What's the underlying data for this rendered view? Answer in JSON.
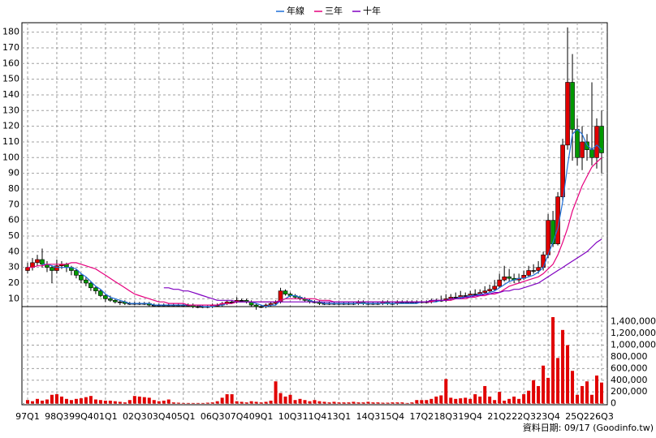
{
  "chart_data": {
    "type": "candlestick",
    "categories": [
      "97Q1",
      null,
      null,
      null,
      null,
      null,
      "98Q3",
      null,
      null,
      null,
      null,
      "99Q4",
      null,
      null,
      null,
      null,
      "01Q1",
      null,
      null,
      null,
      null,
      null,
      "02Q3",
      null,
      null,
      null,
      null,
      "03Q4",
      null,
      null,
      null,
      null,
      "05Q1",
      null,
      null,
      null,
      null,
      null,
      "06Q3",
      null,
      null,
      null,
      null,
      "07Q4",
      null,
      null,
      null,
      null,
      "09Q1",
      null,
      null,
      null,
      null,
      null,
      "10Q3",
      null,
      null,
      null,
      null,
      "11Q4",
      null,
      null,
      null,
      null,
      "13Q1",
      null,
      null,
      null,
      null,
      null,
      "14Q3",
      null,
      null,
      null,
      null,
      "15Q4",
      null,
      null,
      null,
      null,
      null,
      "17Q2",
      null,
      null,
      null,
      null,
      "18Q3",
      null,
      null,
      null,
      null,
      "19Q4",
      null,
      null,
      null,
      null,
      null,
      "21Q2",
      null,
      null,
      null,
      null,
      "22Q3",
      null,
      null,
      null,
      null,
      "23Q4",
      null,
      null,
      null,
      null,
      null,
      "25Q2",
      null,
      null,
      null,
      null,
      "26Q3"
    ],
    "open": [
      28,
      30,
      33,
      35,
      32,
      30,
      28,
      31,
      32,
      30,
      28,
      25,
      22,
      20,
      17,
      15,
      12,
      10,
      9,
      8,
      8,
      7,
      7,
      7,
      7,
      7,
      6,
      6,
      6,
      6,
      6,
      6,
      6,
      6,
      6,
      5,
      5,
      5,
      5,
      6,
      6,
      7,
      8,
      8,
      9,
      9,
      8,
      6,
      5,
      5,
      6,
      7,
      8,
      15,
      13,
      12,
      11,
      10,
      9,
      8,
      8,
      7,
      7,
      7,
      7,
      7,
      7,
      7,
      7,
      8,
      7,
      7,
      7,
      7,
      8,
      7,
      7,
      8,
      8,
      8,
      8,
      8,
      8,
      8,
      9,
      9,
      9,
      10,
      11,
      11,
      12,
      12,
      13,
      13,
      14,
      15,
      16,
      18,
      22,
      24,
      23,
      22,
      23,
      25,
      28,
      28,
      30,
      38,
      60,
      45,
      75,
      108,
      148,
      118,
      100,
      110,
      105,
      100,
      120
    ],
    "high": [
      33,
      36,
      38,
      42,
      34,
      31,
      35,
      34,
      33,
      31,
      29,
      26,
      24,
      21,
      18,
      16,
      13,
      12,
      10,
      9,
      9,
      8,
      8,
      8,
      8,
      8,
      7,
      7,
      7,
      7,
      7,
      7,
      7,
      7,
      7,
      6,
      6,
      6,
      7,
      7,
      8,
      9,
      9,
      11,
      10,
      10,
      9,
      7,
      6,
      7,
      8,
      9,
      17,
      16,
      14,
      13,
      12,
      11,
      10,
      9,
      9,
      8,
      8,
      8,
      8,
      8,
      8,
      8,
      9,
      9,
      8,
      8,
      8,
      9,
      9,
      8,
      9,
      9,
      9,
      9,
      9,
      9,
      9,
      10,
      10,
      12,
      13,
      13,
      14,
      15,
      14,
      15,
      16,
      16,
      18,
      19,
      22,
      26,
      31,
      29,
      26,
      26,
      28,
      31,
      32,
      34,
      40,
      64,
      66,
      78,
      112,
      183,
      166,
      125,
      120,
      115,
      148,
      125,
      130
    ],
    "low": [
      26,
      28,
      31,
      30,
      27,
      20,
      26,
      29,
      27,
      25,
      23,
      20,
      18,
      15,
      13,
      11,
      8,
      8,
      7,
      6,
      6,
      6,
      6,
      6,
      6,
      5,
      5,
      5,
      5,
      5,
      5,
      5,
      5,
      5,
      4,
      4,
      4,
      4,
      4,
      5,
      5,
      6,
      7,
      7,
      8,
      7,
      5,
      3,
      4,
      4,
      5,
      6,
      7,
      12,
      11,
      10,
      9,
      8,
      7,
      7,
      6,
      6,
      6,
      6,
      6,
      6,
      6,
      6,
      6,
      6,
      6,
      6,
      6,
      6,
      6,
      6,
      6,
      7,
      7,
      7,
      7,
      7,
      7,
      7,
      8,
      8,
      8,
      9,
      10,
      10,
      11,
      11,
      12,
      12,
      13,
      14,
      15,
      17,
      21,
      21,
      20,
      20,
      22,
      24,
      26,
      26,
      28,
      36,
      43,
      44,
      72,
      105,
      98,
      95,
      92,
      98,
      95,
      93,
      90
    ],
    "close": [
      30,
      33,
      35,
      32,
      30,
      28,
      31,
      32,
      30,
      28,
      25,
      22,
      20,
      17,
      15,
      12,
      10,
      9,
      8,
      8,
      7,
      7,
      7,
      7,
      7,
      6,
      6,
      6,
      6,
      6,
      6,
      6,
      6,
      6,
      5,
      5,
      5,
      5,
      6,
      6,
      7,
      8,
      8,
      9,
      9,
      8,
      6,
      5,
      5,
      6,
      7,
      8,
      15,
      13,
      12,
      11,
      10,
      9,
      8,
      8,
      7,
      7,
      7,
      7,
      7,
      7,
      7,
      7,
      8,
      7,
      7,
      7,
      7,
      8,
      7,
      7,
      8,
      8,
      8,
      8,
      8,
      8,
      8,
      9,
      9,
      9,
      10,
      11,
      11,
      12,
      12,
      13,
      13,
      14,
      15,
      16,
      18,
      22,
      24,
      23,
      22,
      23,
      25,
      28,
      28,
      30,
      38,
      60,
      45,
      75,
      108,
      148,
      118,
      100,
      110,
      105,
      100,
      120,
      103
    ],
    "up_color": "#e00000",
    "down_color": "#009900",
    "series": [
      {
        "name": "年線",
        "color": "#1e6fd9",
        "values": [
          null,
          null,
          null,
          32,
          32,
          31,
          30,
          30,
          30,
          30,
          29,
          26,
          24,
          21,
          18,
          16,
          13,
          11,
          10,
          9,
          8,
          7,
          7,
          7,
          7,
          7,
          6,
          6,
          6,
          6,
          6,
          6,
          6,
          6,
          6,
          6,
          5,
          5,
          5,
          6,
          6,
          7,
          7,
          8,
          8,
          8,
          8,
          7,
          6,
          5,
          6,
          6,
          9,
          10,
          12,
          12,
          11,
          10,
          9,
          8,
          8,
          7,
          7,
          7,
          7,
          7,
          7,
          7,
          7,
          7,
          7,
          7,
          7,
          7,
          7,
          7,
          7,
          7,
          7,
          7,
          7,
          8,
          8,
          8,
          8,
          9,
          9,
          10,
          10,
          11,
          11,
          12,
          12,
          13,
          13,
          14,
          15,
          17,
          19,
          21,
          22,
          23,
          23,
          24,
          25,
          27,
          30,
          38,
          46,
          55,
          72,
          95,
          115,
          118,
          115,
          108,
          105,
          108,
          105
        ]
      },
      {
        "name": "三年",
        "color": "#e6007e",
        "values": [
          30,
          30,
          31,
          31,
          32,
          32,
          32,
          32,
          32,
          33,
          33,
          32,
          31,
          30,
          29,
          27,
          25,
          23,
          21,
          19,
          17,
          15,
          13,
          12,
          11,
          10,
          9,
          8,
          8,
          7,
          7,
          7,
          7,
          6,
          6,
          6,
          6,
          6,
          6,
          6,
          7,
          7,
          7,
          8,
          8,
          8,
          8,
          8,
          8,
          8,
          8,
          8,
          9,
          10,
          10,
          10,
          10,
          10,
          10,
          10,
          9,
          9,
          9,
          8,
          8,
          8,
          8,
          8,
          8,
          8,
          8,
          8,
          8,
          8,
          8,
          8,
          8,
          8,
          8,
          8,
          8,
          8,
          8,
          8,
          9,
          9,
          9,
          9,
          10,
          10,
          10,
          11,
          11,
          12,
          12,
          13,
          13,
          14,
          16,
          18,
          19,
          20,
          21,
          22,
          23,
          24,
          26,
          29,
          32,
          38,
          46,
          55,
          66,
          74,
          82,
          88,
          94,
          97,
          100
        ]
      },
      {
        "name": "十年",
        "color": "#8000c0",
        "values": [
          null,
          null,
          null,
          null,
          null,
          null,
          null,
          null,
          null,
          null,
          null,
          null,
          null,
          null,
          null,
          null,
          null,
          null,
          null,
          null,
          null,
          null,
          null,
          null,
          null,
          null,
          null,
          null,
          17,
          17,
          16,
          16,
          15,
          15,
          14,
          13,
          12,
          11,
          10,
          9,
          9,
          9,
          9,
          8,
          8,
          8,
          8,
          8,
          8,
          8,
          8,
          8,
          8,
          8,
          8,
          8,
          8,
          8,
          8,
          8,
          8,
          8,
          8,
          8,
          8,
          8,
          8,
          8,
          8,
          8,
          8,
          8,
          8,
          8,
          8,
          8,
          8,
          8,
          8,
          8,
          8,
          8,
          8,
          9,
          9,
          9,
          9,
          10,
          10,
          10,
          11,
          11,
          12,
          12,
          13,
          13,
          14,
          14,
          15,
          15,
          16,
          16,
          17,
          18,
          19,
          20,
          22,
          24,
          26,
          28,
          30,
          32,
          34,
          36,
          38,
          40,
          43,
          46,
          48
        ]
      }
    ],
    "ylim": [
      5,
      186
    ],
    "yticks": [
      10,
      20,
      30,
      40,
      50,
      60,
      70,
      80,
      90,
      100,
      110,
      120,
      130,
      140,
      150,
      160,
      170,
      180
    ],
    "volume_values": [
      60000,
      40000,
      80000,
      50000,
      70000,
      150000,
      160000,
      120000,
      80000,
      60000,
      80000,
      90000,
      110000,
      130000,
      70000,
      60000,
      50000,
      50000,
      40000,
      30000,
      20000,
      60000,
      130000,
      120000,
      110000,
      100000,
      60000,
      40000,
      50000,
      70000,
      20000,
      15000,
      10000,
      10000,
      10000,
      10000,
      10000,
      15000,
      20000,
      40000,
      100000,
      160000,
      160000,
      40000,
      30000,
      20000,
      40000,
      30000,
      20000,
      30000,
      50000,
      380000,
      180000,
      120000,
      150000,
      60000,
      80000,
      60000,
      40000,
      60000,
      40000,
      30000,
      20000,
      30000,
      20000,
      20000,
      20000,
      30000,
      20000,
      20000,
      30000,
      20000,
      20000,
      15000,
      15000,
      20000,
      20000,
      20000,
      10000,
      20000,
      60000,
      60000,
      60000,
      80000,
      120000,
      140000,
      420000,
      100000,
      80000,
      90000,
      100000,
      80000,
      160000,
      120000,
      300000,
      120000,
      60000,
      200000,
      50000,
      80000,
      120000,
      80000,
      160000,
      220000,
      400000,
      300000,
      650000,
      440000,
      1480000,
      780000,
      1260000,
      1000000,
      560000,
      150000,
      300000,
      380000,
      150000,
      480000,
      360000
    ],
    "volume_color": "#e00000",
    "y2lim": [
      -20000,
      1660000
    ],
    "y2ticks": [
      0,
      {
        "value": 200000,
        "label": "200,000"
      },
      {
        "value": 400000,
        "label": "400,000"
      },
      {
        "value": 600000,
        "label": "600,000"
      },
      {
        "value": 800000,
        "label": "800,000"
      },
      {
        "value": 1000000,
        "label": "1,000,000"
      },
      {
        "value": 1200000,
        "label": "1,200,000"
      },
      {
        "value": 1400000,
        "label": "1,400,000"
      }
    ],
    "grid": true,
    "legend": "top",
    "source": "資料日期: 09/17  (Goodinfo.tw)"
  }
}
